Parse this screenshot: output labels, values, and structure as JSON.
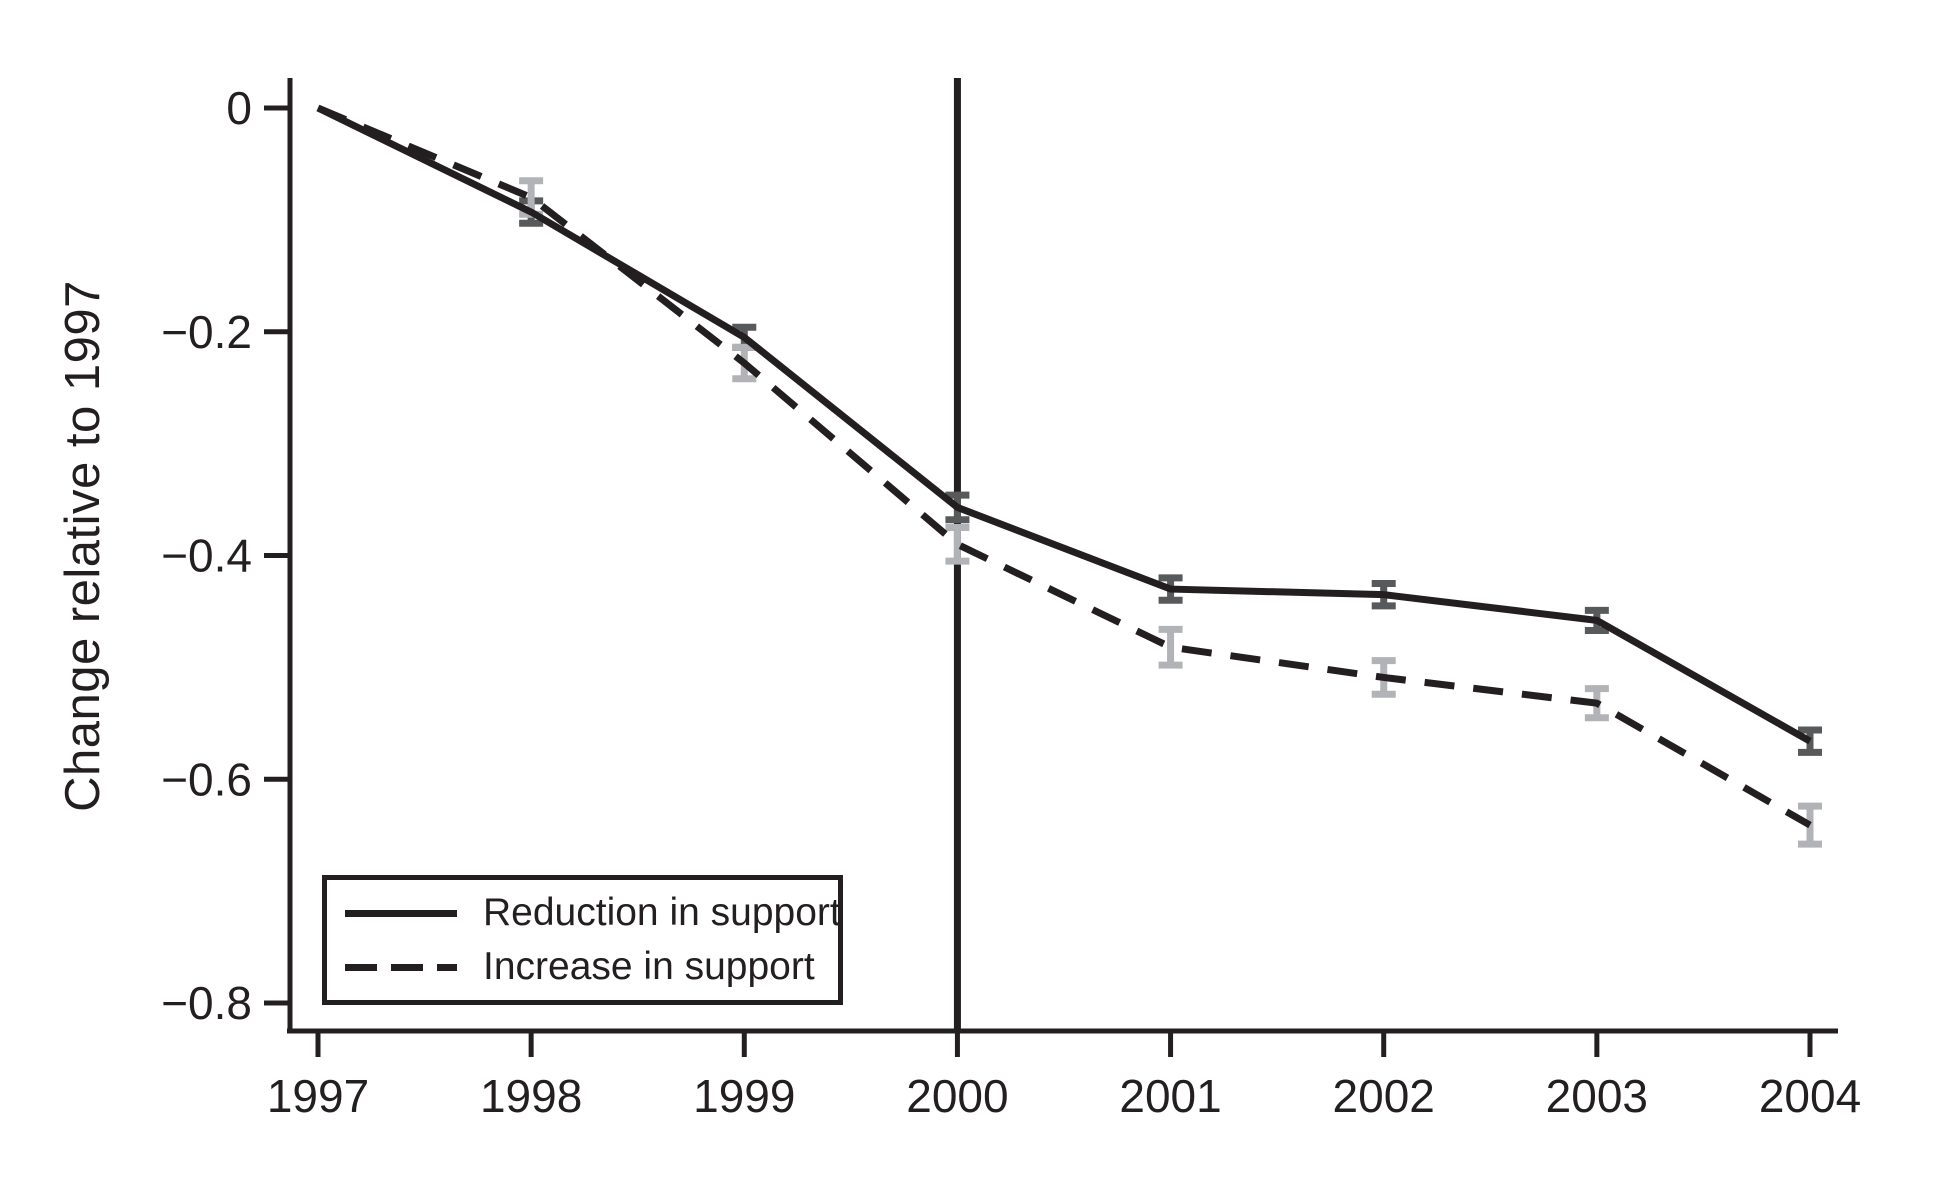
{
  "chart_data": {
    "type": "line",
    "title": "",
    "xlabel": "",
    "ylabel": "Change relative to 1997",
    "x": [
      1997,
      1998,
      1999,
      2000,
      2001,
      2002,
      2003,
      2004
    ],
    "xtick_labels": [
      "1997",
      "1998",
      "1999",
      "2000",
      "2001",
      "2002",
      "2003",
      "2004"
    ],
    "yticks": [
      0,
      -0.2,
      -0.4,
      -0.6,
      -0.8
    ],
    "ytick_labels": [
      "0",
      "−0.2",
      "−0.4",
      "−0.6",
      "−0.8"
    ],
    "ylim": [
      -0.8,
      0
    ],
    "xlim": [
      1997,
      2004
    ],
    "grid": false,
    "vline_x": 2000,
    "legend_position": "bottom-left-inside",
    "series": [
      {
        "name": "Reduction in support",
        "style": "solid",
        "line_color": "#231f20",
        "error_bar_color": "#58595b",
        "values": [
          0,
          -0.093,
          -0.205,
          -0.357,
          -0.43,
          -0.435,
          -0.458,
          -0.566
        ],
        "error_halfwidths": [
          0,
          0.01,
          0.009,
          0.011,
          0.01,
          0.01,
          0.009,
          0.01
        ]
      },
      {
        "name": "Increase in support",
        "style": "dashed",
        "line_color": "#231f20",
        "error_bar_color": "#b1b3b6",
        "values": [
          0,
          -0.08,
          -0.228,
          -0.39,
          -0.482,
          -0.509,
          -0.532,
          -0.641
        ],
        "error_halfwidths": [
          0,
          0.015,
          0.014,
          0.015,
          0.016,
          0.015,
          0.013,
          0.017
        ]
      }
    ],
    "colors": {
      "axis": "#231f20",
      "reference_line": "#231f20",
      "background": "#ffffff"
    }
  }
}
